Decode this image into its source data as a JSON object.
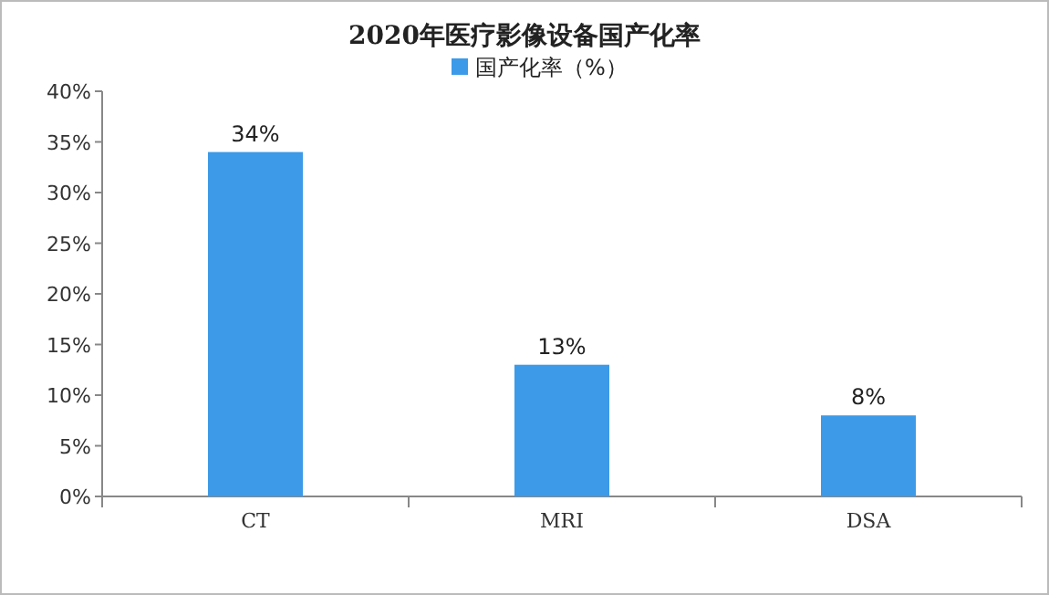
{
  "chart_data": {
    "type": "bar",
    "title": "2020年医疗影像设备国产化率",
    "categories": [
      "CT",
      "MRI",
      "DSA"
    ],
    "series": [
      {
        "name": "国产化率（%）",
        "color": "#3c9ae8",
        "values": [
          34,
          13,
          8
        ],
        "value_labels": [
          "34%",
          "13%",
          "8%"
        ]
      }
    ],
    "ylim": [
      0,
      40
    ],
    "yticks": [
      {
        "value": 0,
        "label": "0%"
      },
      {
        "value": 5,
        "label": "5%"
      },
      {
        "value": 10,
        "label": "10%"
      },
      {
        "value": 15,
        "label": "15%"
      },
      {
        "value": 20,
        "label": "20%"
      },
      {
        "value": 25,
        "label": "25%"
      },
      {
        "value": 30,
        "label": "30%"
      },
      {
        "value": 35,
        "label": "35%"
      },
      {
        "value": 40,
        "label": "40%"
      }
    ],
    "legend": "top",
    "grid": false
  }
}
